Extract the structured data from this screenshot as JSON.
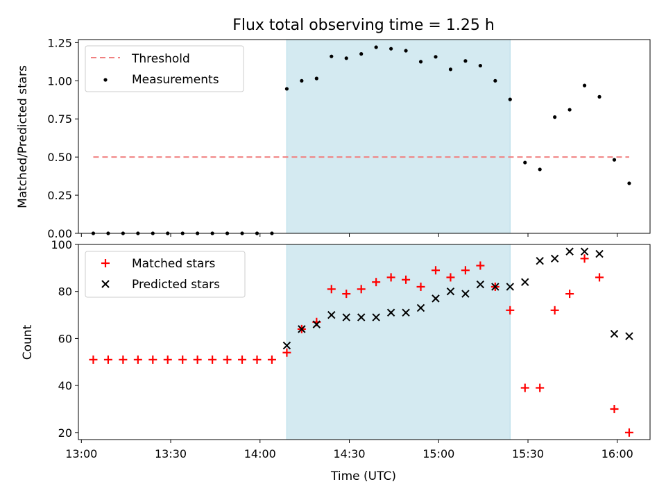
{
  "chart_data": [
    {
      "type": "scatter",
      "title": "Flux total observing time = 1.25 h",
      "xlabel": "",
      "ylabel": "Matched/Predicted stars",
      "ylim": [
        0,
        1.27
      ],
      "yticks": [
        "0.00",
        "0.25",
        "0.50",
        "0.75",
        "1.00",
        "1.25"
      ],
      "ytick_values": [
        0,
        0.25,
        0.5,
        0.75,
        1.0,
        1.25
      ],
      "shaded_region": {
        "start": "14:09",
        "end": "15:24",
        "color": "#d4eaf1"
      },
      "legend_placement": "top-left",
      "threshold": {
        "name": "Threshold",
        "value": 0.5,
        "start": "13:04",
        "end": "16:04",
        "color": "#f08080",
        "style": "dashed"
      },
      "series": [
        {
          "name": "Measurements",
          "marker": "dot",
          "color": "#000000",
          "x": [
            "13:04",
            "13:09",
            "13:14",
            "13:19",
            "13:24",
            "13:29",
            "13:34",
            "13:39",
            "13:44",
            "13:49",
            "13:54",
            "13:59",
            "14:04",
            "14:09",
            "14:14",
            "14:19",
            "14:24",
            "14:29",
            "14:34",
            "14:39",
            "14:44",
            "14:49",
            "14:54",
            "14:59",
            "15:04",
            "15:09",
            "15:14",
            "15:19",
            "15:24",
            "15:29",
            "15:34",
            "15:39",
            "15:44",
            "15:49",
            "15:54",
            "15:59",
            "16:04"
          ],
          "y": [
            0,
            0,
            0,
            0,
            0,
            0,
            0,
            0,
            0,
            0,
            0,
            0,
            0,
            0.947,
            1.0,
            1.015,
            1.16,
            1.148,
            1.176,
            1.22,
            1.21,
            1.197,
            1.125,
            1.157,
            1.075,
            1.13,
            1.099,
            1.0,
            0.878,
            0.464,
            0.419,
            0.762,
            0.81,
            0.969,
            0.895,
            0.482,
            0.328
          ]
        }
      ]
    },
    {
      "type": "scatter",
      "title": "",
      "xlabel": "Time (UTC)",
      "ylabel": "Count",
      "ylim": [
        17,
        100
      ],
      "yticks": [
        "20",
        "40",
        "60",
        "80",
        "100"
      ],
      "ytick_values": [
        20,
        40,
        60,
        80,
        100
      ],
      "xlim": [
        "12:59",
        "16:11"
      ],
      "xticks": [
        "13:00",
        "13:30",
        "14:00",
        "14:30",
        "15:00",
        "15:30",
        "16:00"
      ],
      "shaded_region": {
        "start": "14:09",
        "end": "15:24",
        "color": "#d4eaf1"
      },
      "legend_placement": "top-left",
      "series": [
        {
          "name": "Matched stars",
          "marker": "plus",
          "color": "#ff0000",
          "x": [
            "13:04",
            "13:09",
            "13:14",
            "13:19",
            "13:24",
            "13:29",
            "13:34",
            "13:39",
            "13:44",
            "13:49",
            "13:54",
            "13:59",
            "14:04",
            "14:09",
            "14:14",
            "14:19",
            "14:24",
            "14:29",
            "14:34",
            "14:39",
            "14:44",
            "14:49",
            "14:54",
            "14:59",
            "15:04",
            "15:09",
            "15:14",
            "15:19",
            "15:24",
            "15:29",
            "15:34",
            "15:39",
            "15:44",
            "15:49",
            "15:54",
            "15:59",
            "16:04"
          ],
          "y": [
            51,
            51,
            51,
            51,
            51,
            51,
            51,
            51,
            51,
            51,
            51,
            51,
            51,
            54,
            64,
            67,
            81,
            79,
            81,
            84,
            86,
            85,
            82,
            89,
            86,
            89,
            91,
            82,
            72,
            39,
            39,
            72,
            79,
            94,
            86,
            30,
            20
          ]
        },
        {
          "name": "Predicted stars",
          "marker": "x",
          "color": "#000000",
          "x": [
            "14:09",
            "14:14",
            "14:19",
            "14:24",
            "14:29",
            "14:34",
            "14:39",
            "14:44",
            "14:49",
            "14:54",
            "14:59",
            "15:04",
            "15:09",
            "15:14",
            "15:19",
            "15:24",
            "15:29",
            "15:34",
            "15:39",
            "15:44",
            "15:49",
            "15:54",
            "15:59",
            "16:04"
          ],
          "y": [
            57,
            64,
            66,
            70,
            69,
            69,
            69,
            71,
            71,
            73,
            77,
            80,
            79,
            83,
            82,
            82,
            84,
            93,
            94,
            97,
            97,
            96,
            62,
            61
          ]
        }
      ]
    }
  ]
}
